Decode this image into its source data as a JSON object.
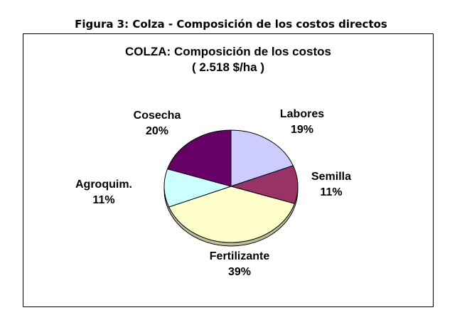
{
  "figure_caption": "Figura 3: Colza - Composición de los costos directos",
  "chart_data": {
    "type": "pie",
    "title": "COLZA: Composición de los costos",
    "subtitle": "( 2.518 $/ha )",
    "slices": [
      {
        "label": "Labores",
        "value_label": "19%",
        "value": 19,
        "color": "#ccccff"
      },
      {
        "label": "Semilla",
        "value_label": "11%",
        "value": 11,
        "color": "#993366"
      },
      {
        "label": "Fertilizante",
        "value_label": "39%",
        "value": 39,
        "color": "#ffffcc"
      },
      {
        "label": "Agroquim.",
        "value_label": "11%",
        "value": 11,
        "color": "#ccffff"
      },
      {
        "label": "Cosecha",
        "value_label": "20%",
        "value": 20,
        "color": "#660066"
      }
    ]
  }
}
